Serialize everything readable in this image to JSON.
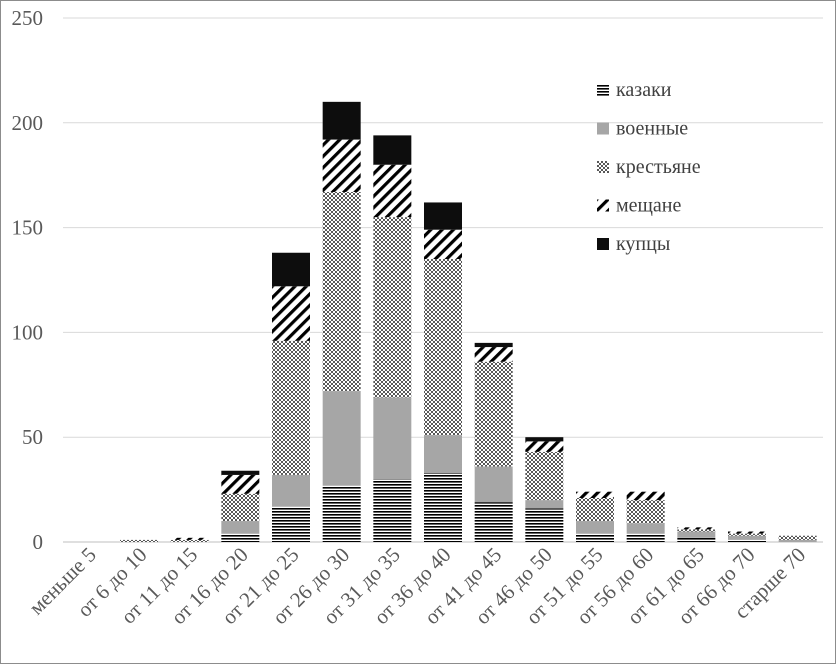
{
  "chart_data": {
    "type": "bar",
    "stacked": true,
    "categories": [
      "меньше 5",
      "от 6 до 10",
      "от 11 до 15",
      "от 16 до 20",
      "от 21 до 25",
      "от 26 до 30",
      "от 31 до 35",
      "от 36 до 40",
      "от 41 до 45",
      "от 46 до 50",
      "от 51 до 55",
      "от 56 до 60",
      "от 61 до 65",
      "от 66 до 70",
      "старше 70"
    ],
    "series": [
      {
        "name": "казаки",
        "pattern": "horizontal-lines",
        "values": [
          0,
          0,
          0,
          4,
          17,
          27,
          30,
          33,
          19,
          16,
          4,
          4,
          2,
          1,
          0
        ]
      },
      {
        "name": "военные",
        "pattern": "solid-gray",
        "values": [
          0,
          0,
          0,
          6,
          15,
          45,
          39,
          18,
          17,
          4,
          6,
          5,
          3,
          2,
          1
        ]
      },
      {
        "name": "крестьяне",
        "pattern": "checker",
        "values": [
          0,
          1,
          1,
          13,
          64,
          95,
          86,
          84,
          50,
          23,
          11,
          11,
          1,
          1,
          2
        ]
      },
      {
        "name": "мещане",
        "pattern": "diagonal-stripes",
        "values": [
          0,
          0,
          1,
          9,
          26,
          25,
          25,
          14,
          7,
          5,
          3,
          4,
          1,
          1,
          0
        ]
      },
      {
        "name": "купцы",
        "pattern": "solid-black",
        "values": [
          0,
          0,
          0,
          2,
          16,
          18,
          14,
          13,
          2,
          2,
          0,
          0,
          0,
          0,
          0
        ]
      }
    ],
    "yticks": [
      0,
      50,
      100,
      150,
      200,
      250
    ],
    "ylim": [
      0,
      250
    ],
    "grid": true,
    "legend": "top-right"
  },
  "colors": {
    "horizontal_lines": "#000000",
    "solid_gray": "#a6a6a6",
    "checker": "#595959",
    "diagonal_stripes": "#000000",
    "solid_black": "#0d0d0d",
    "grid": "#d9d9d9",
    "tick_text": "#595959"
  }
}
